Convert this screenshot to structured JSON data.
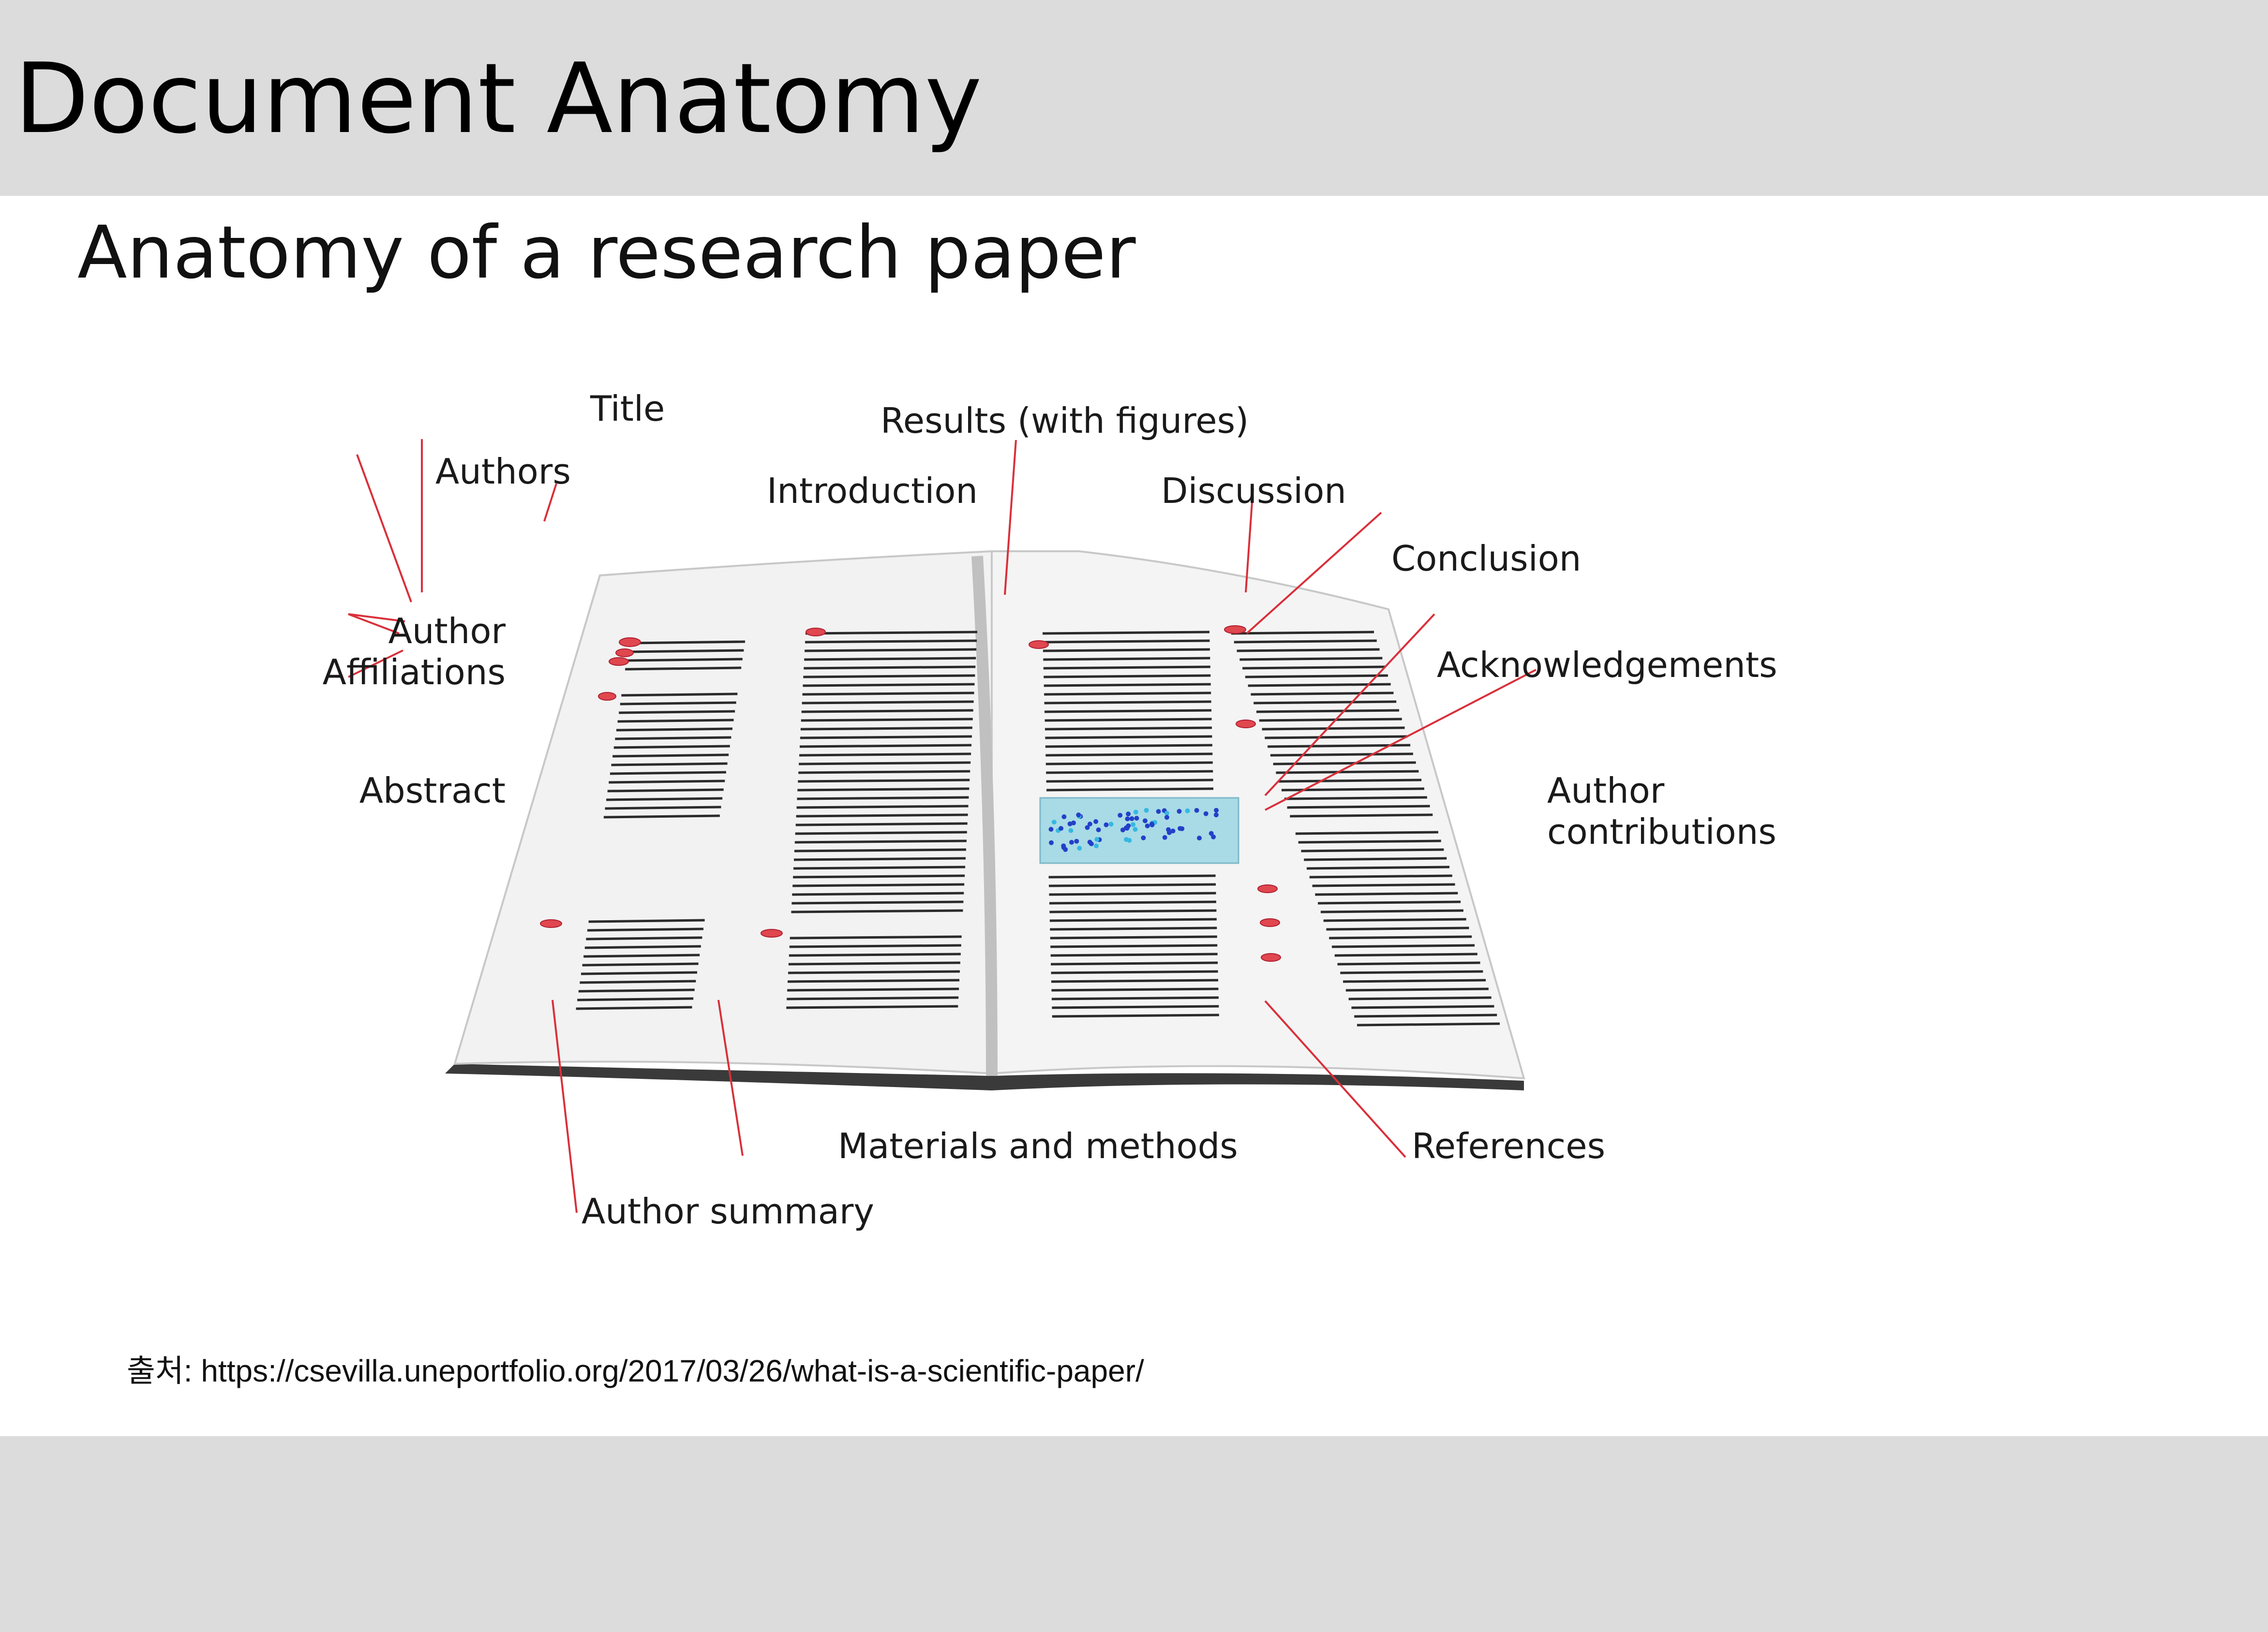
{
  "slide": {
    "title": "Document Anatomy",
    "subtitle": "Anatomy of a research paper",
    "source_label": "출처:",
    "source_url": "https://csevilla.uneportfolio.org/2017/03/26/what-is-a-scientific-paper/"
  },
  "figure": {
    "labels": {
      "title": "Title",
      "authors": "Authors",
      "results": "Results (with figures)",
      "introduction": "Introduction",
      "discussion": "Discussion",
      "conclusion": "Conclusion",
      "author_affiliations_line1": "Author",
      "author_affiliations_line2": "Affiliations",
      "acknowledgements": "Acknowledgements",
      "abstract": "Abstract",
      "author_contributions_line1": "Author",
      "author_contributions_line2": "contributions",
      "materials_methods": "Materials and methods",
      "references": "References",
      "author_summary": "Author summary"
    },
    "colors": {
      "leader_line": "#d9303a",
      "marker": "#e0474f",
      "page": "#f2f2f2",
      "text_line": "#2b2b2b",
      "figure_box": "#a8dbe6",
      "figure_points": "#2340c8"
    }
  }
}
